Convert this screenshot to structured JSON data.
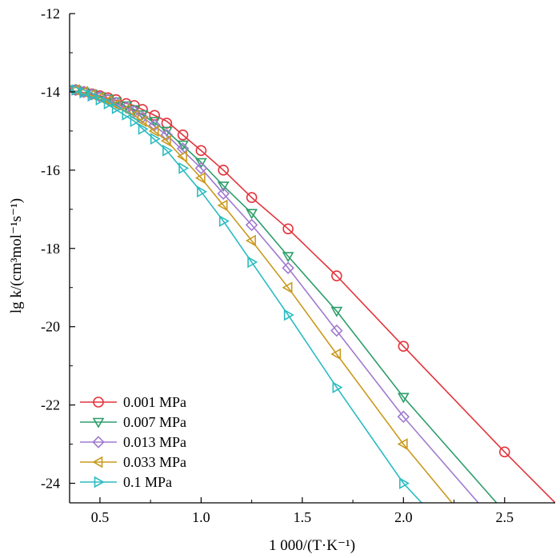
{
  "chart_data": {
    "type": "line",
    "title": "",
    "xlabel": "1 000/(T·K⁻¹)",
    "ylabel": "lg k/(cm³mol⁻¹s⁻¹)",
    "xlim": [
      0.35,
      2.75
    ],
    "ylim": [
      -24.5,
      -12
    ],
    "x_ticks": [
      0.5,
      1.0,
      1.5,
      2.0,
      2.5
    ],
    "x_tick_labels": [
      "0.5",
      "1.0",
      "1.5",
      "2.0",
      "2.5"
    ],
    "y_ticks": [
      -24,
      -22,
      -20,
      -18,
      -16,
      -14,
      -12
    ],
    "y_tick_labels": [
      "-24",
      "-22",
      "-20",
      "-18",
      "-16",
      "-14",
      "-12"
    ],
    "legend_position": "bottom-left",
    "grid": false,
    "series": [
      {
        "name": "0.001 MPa",
        "color": "#e3343c",
        "marker": "circle",
        "line_x": [
          0.35,
          0.5,
          0.67,
          0.83,
          1.0,
          1.11,
          1.25,
          1.43,
          1.67,
          2.0,
          2.5,
          2.75
        ],
        "line_y": [
          -13.95,
          -14.1,
          -14.35,
          -14.75,
          -15.5,
          -16.0,
          -16.7,
          -17.5,
          -18.7,
          -20.5,
          -23.2,
          -24.5
        ],
        "marker_x": [
          0.38,
          0.42,
          0.46,
          0.5,
          0.54,
          0.58,
          0.63,
          0.67,
          0.71,
          0.77,
          0.83,
          0.91,
          1.0,
          1.11,
          1.25,
          1.43,
          1.67,
          2.0,
          2.5
        ],
        "marker_y": [
          -13.95,
          -14.0,
          -14.05,
          -14.1,
          -14.15,
          -14.2,
          -14.3,
          -14.35,
          -14.45,
          -14.6,
          -14.8,
          -15.1,
          -15.5,
          -16.0,
          -16.7,
          -17.5,
          -18.7,
          -20.5,
          -23.2
        ]
      },
      {
        "name": "0.007 MPa",
        "color": "#2e9e6b",
        "marker": "triangle-down",
        "line_x": [
          0.35,
          0.5,
          0.67,
          0.83,
          1.0,
          1.11,
          1.25,
          1.43,
          1.67,
          2.0,
          2.46
        ],
        "line_y": [
          -13.95,
          -14.12,
          -14.45,
          -15.0,
          -15.8,
          -16.4,
          -17.1,
          -18.2,
          -19.6,
          -21.8,
          -24.5
        ],
        "marker_x": [
          0.38,
          0.42,
          0.46,
          0.5,
          0.54,
          0.58,
          0.63,
          0.67,
          0.71,
          0.77,
          0.83,
          0.91,
          1.0,
          1.11,
          1.25,
          1.43,
          1.67,
          2.0
        ],
        "marker_y": [
          -13.95,
          -14.0,
          -14.05,
          -14.12,
          -14.18,
          -14.25,
          -14.35,
          -14.45,
          -14.58,
          -14.75,
          -15.0,
          -15.35,
          -15.8,
          -16.4,
          -17.1,
          -18.2,
          -19.6,
          -21.8
        ]
      },
      {
        "name": "0.013 MPa",
        "color": "#a07ad0",
        "marker": "diamond",
        "line_x": [
          0.35,
          0.5,
          0.67,
          0.83,
          1.0,
          1.11,
          1.25,
          1.43,
          1.67,
          2.0,
          2.37
        ],
        "line_y": [
          -13.95,
          -14.13,
          -14.5,
          -15.1,
          -15.95,
          -16.6,
          -17.4,
          -18.5,
          -20.1,
          -22.3,
          -24.5
        ],
        "marker_x": [
          0.38,
          0.42,
          0.46,
          0.5,
          0.54,
          0.58,
          0.63,
          0.67,
          0.71,
          0.77,
          0.83,
          0.91,
          1.0,
          1.11,
          1.25,
          1.43,
          1.67,
          2.0
        ],
        "marker_y": [
          -13.95,
          -14.0,
          -14.06,
          -14.13,
          -14.2,
          -14.28,
          -14.4,
          -14.5,
          -14.65,
          -14.85,
          -15.1,
          -15.45,
          -15.95,
          -16.6,
          -17.4,
          -18.5,
          -20.1,
          -22.3
        ]
      },
      {
        "name": "0.033 MPa",
        "color": "#c99a1e",
        "marker": "triangle-left",
        "line_x": [
          0.35,
          0.5,
          0.67,
          0.83,
          1.0,
          1.11,
          1.25,
          1.43,
          1.67,
          2.0,
          2.24
        ],
        "line_y": [
          -13.95,
          -14.15,
          -14.6,
          -15.25,
          -16.2,
          -16.9,
          -17.8,
          -19.0,
          -20.7,
          -23.0,
          -24.5
        ],
        "marker_x": [
          0.38,
          0.42,
          0.46,
          0.5,
          0.54,
          0.58,
          0.63,
          0.67,
          0.71,
          0.77,
          0.83,
          0.91,
          1.0,
          1.11,
          1.25,
          1.43,
          1.67,
          2.0
        ],
        "marker_y": [
          -13.95,
          -14.0,
          -14.07,
          -14.15,
          -14.23,
          -14.33,
          -14.45,
          -14.6,
          -14.75,
          -15.0,
          -15.25,
          -15.65,
          -16.2,
          -16.9,
          -17.8,
          -19.0,
          -20.7,
          -23.0
        ]
      },
      {
        "name": "0.1 MPa",
        "color": "#2bbcc2",
        "marker": "triangle-right",
        "line_x": [
          0.35,
          0.5,
          0.67,
          0.83,
          1.0,
          1.11,
          1.25,
          1.43,
          1.67,
          2.0,
          2.09
        ],
        "line_y": [
          -13.95,
          -14.2,
          -14.75,
          -15.5,
          -16.55,
          -17.3,
          -18.35,
          -19.7,
          -21.55,
          -24.0,
          -24.5
        ],
        "marker_x": [
          0.38,
          0.42,
          0.46,
          0.5,
          0.54,
          0.58,
          0.63,
          0.67,
          0.71,
          0.77,
          0.83,
          0.91,
          1.0,
          1.11,
          1.25,
          1.43,
          1.67,
          2.0
        ],
        "marker_y": [
          -13.95,
          -14.02,
          -14.1,
          -14.2,
          -14.3,
          -14.42,
          -14.58,
          -14.75,
          -14.95,
          -15.2,
          -15.5,
          -15.95,
          -16.55,
          -17.3,
          -18.35,
          -19.7,
          -21.55,
          -24.0
        ]
      }
    ]
  }
}
